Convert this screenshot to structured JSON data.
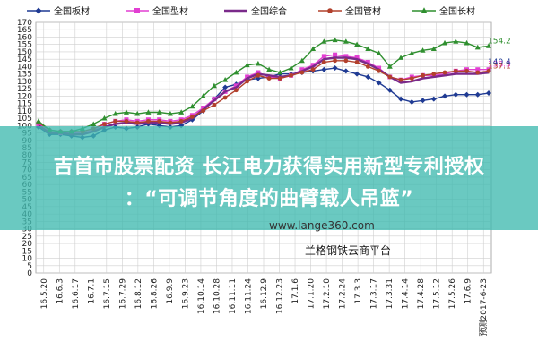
{
  "overlay": {
    "headline_line1": "吉首市股票配资 长江电力获得实用新型专利授权",
    "headline_line2": "：“可调节角度的曲臂载人吊篮”"
  },
  "watermark": "www.lange360.com",
  "source_note": "兰格钢铁云商平台",
  "colors": {
    "plate": "#1f3a93",
    "shaped": "#e23fd2",
    "composite": "#7a2a8a",
    "pipe": "#b2402c",
    "long": "#2f8f2f",
    "grid": "#cfcfcf",
    "band": "#40bab0"
  },
  "chart_data": {
    "type": "line",
    "title": "",
    "xlabel": "",
    "ylabel": "",
    "ylim": [
      0,
      170
    ],
    "ystep": 5,
    "grid": true,
    "legend_position": "top",
    "x_tick_labels": [
      "16.5.20",
      "16.6.3",
      "16.6.17",
      "16.7.1",
      "16.7.15",
      "16.7.29",
      "16.8.12",
      "16.8.26",
      "16.9.9",
      "16.9.23",
      "16.10.14",
      "16.10.28",
      "16.11.11",
      "16.11.24",
      "16.12.9",
      "16.12.23",
      "17.1.6",
      "17.1.20",
      "17.2.10",
      "17.2.24",
      "17.3.3",
      "17.3.17",
      "17.3.31",
      "17.4.14",
      "17.4.28",
      "17.5.12",
      "17.5.26",
      "17.6.9",
      "预测2017-6-23"
    ],
    "series": [
      {
        "name": "全国板材",
        "color": "#1f3a93",
        "marker": "diamond",
        "end_label": "",
        "values": [
          99,
          94,
          94,
          93,
          92,
          93,
          97,
          99,
          98,
          99,
          101,
          100,
          99,
          100,
          104,
          110,
          118,
          126,
          128,
          131,
          132,
          133,
          135,
          135,
          136,
          137,
          138,
          139,
          137,
          135,
          133,
          129,
          124,
          118,
          116,
          117,
          118,
          120,
          121,
          121,
          121,
          122
        ]
      },
      {
        "name": "全国型材",
        "color": "#e23fd2",
        "marker": "square",
        "end_label": "138.3",
        "values": [
          101,
          96,
          95,
          95,
          95,
          97,
          101,
          103,
          104,
          103,
          104,
          104,
          103,
          104,
          107,
          112,
          118,
          123,
          127,
          133,
          136,
          133,
          132,
          134,
          138,
          141,
          147,
          148,
          147,
          146,
          143,
          139,
          133,
          131,
          133,
          134,
          134,
          135,
          137,
          138,
          138,
          138
        ]
      },
      {
        "name": "全国综合",
        "color": "#7a2a8a",
        "marker": "none",
        "end_label": "",
        "values": [
          100,
          95,
          95,
          94,
          94,
          96,
          99,
          101,
          102,
          101,
          102,
          102,
          101,
          102,
          105,
          111,
          117,
          123,
          126,
          132,
          135,
          134,
          133,
          134,
          137,
          140,
          145,
          146,
          146,
          145,
          142,
          138,
          133,
          129,
          130,
          132,
          133,
          134,
          135,
          135,
          135,
          136
        ]
      },
      {
        "name": "全国管材",
        "color": "#b2402c",
        "marker": "circle",
        "end_label": "137.1",
        "values": [
          102,
          97,
          96,
          96,
          96,
          98,
          101,
          103,
          103,
          102,
          103,
          103,
          102,
          103,
          106,
          110,
          114,
          119,
          124,
          130,
          134,
          132,
          132,
          134,
          136,
          138,
          143,
          144,
          144,
          143,
          140,
          137,
          133,
          131,
          132,
          134,
          135,
          136,
          137,
          137,
          136,
          137
        ]
      },
      {
        "name": "全国长材",
        "color": "#2f8f2f",
        "marker": "triangle",
        "end_label": "154.2",
        "values": [
          103,
          97,
          96,
          96,
          98,
          101,
          105,
          108,
          109,
          108,
          109,
          109,
          108,
          109,
          113,
          120,
          127,
          131,
          136,
          141,
          142,
          138,
          136,
          139,
          144,
          152,
          157,
          158,
          157,
          155,
          152,
          149,
          140,
          146,
          149,
          151,
          152,
          156,
          157,
          156,
          153,
          154
        ]
      }
    ],
    "extra_end_labels": [
      "140.4"
    ]
  }
}
